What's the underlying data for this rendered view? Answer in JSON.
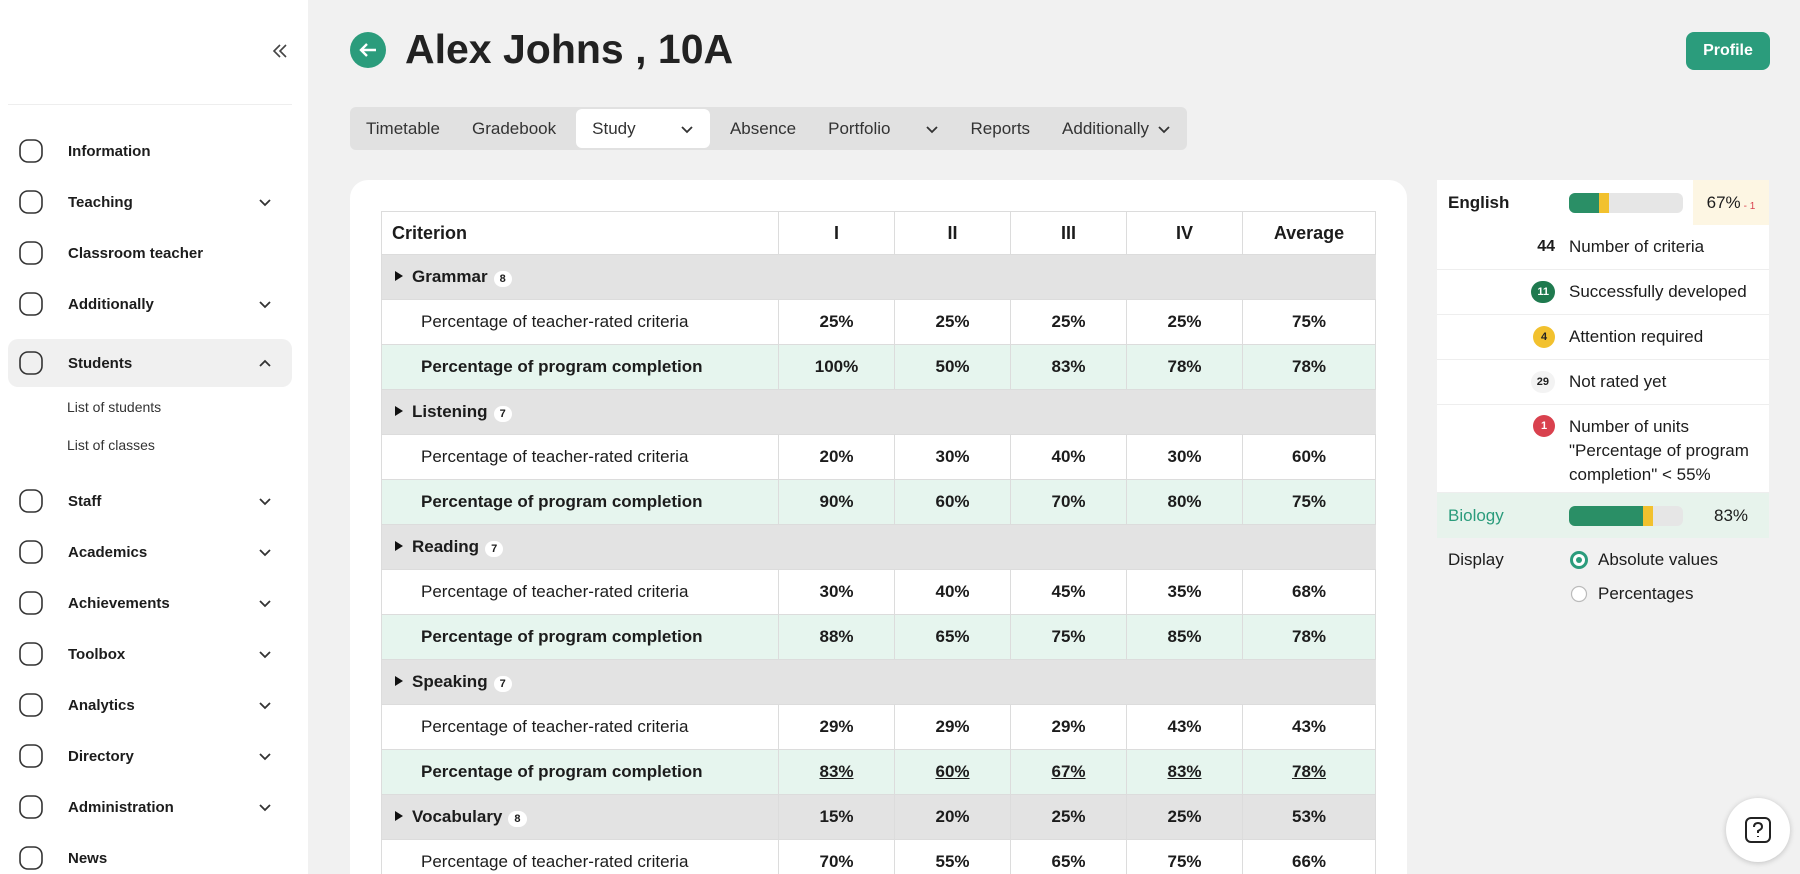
{
  "sidebar": {
    "items": [
      {
        "label": "Information",
        "expandable": false
      },
      {
        "label": "Teaching",
        "expandable": true
      },
      {
        "label": "Classroom teacher",
        "expandable": false
      },
      {
        "label": "Additionally",
        "expandable": true
      },
      {
        "label": "Students",
        "expandable": true,
        "expanded": true,
        "children": [
          "List of students",
          "List of classes"
        ]
      },
      {
        "label": "Staff",
        "expandable": true
      },
      {
        "label": "Academics",
        "expandable": true
      },
      {
        "label": "Achievements",
        "expandable": true
      },
      {
        "label": "Toolbox",
        "expandable": true
      },
      {
        "label": "Analytics",
        "expandable": true
      },
      {
        "label": "Directory",
        "expandable": true
      },
      {
        "label": "Administration",
        "expandable": true
      },
      {
        "label": "News",
        "expandable": false
      }
    ]
  },
  "header": {
    "title": "Alex Johns , 10A",
    "button": "Profile"
  },
  "tabs": {
    "items": [
      {
        "label": "Timetable",
        "dropdown": false
      },
      {
        "label": "Gradebook",
        "dropdown": false
      },
      {
        "label": "Study",
        "dropdown": true,
        "selected": true
      },
      {
        "label": "Absence",
        "dropdown": false
      },
      {
        "label": "Portfolio",
        "dropdown": true
      },
      {
        "label": "Reports",
        "dropdown": false
      },
      {
        "label": "Additionally",
        "dropdown": true
      }
    ]
  },
  "table": {
    "columns": [
      "Criterion",
      "I",
      "II",
      "III",
      "IV",
      "Average"
    ],
    "groups": [
      {
        "name": "Grammar",
        "count": 8,
        "rows": [
          {
            "label": "Percentage of teacher-rated criteria",
            "kind": "teacher",
            "cells": [
              "25%",
              "25%",
              "25%",
              "25%",
              "75%"
            ]
          },
          {
            "label": "Percentage of program completion",
            "kind": "program",
            "cells": [
              "100%",
              "50%",
              "83%",
              "78%",
              "78%"
            ]
          }
        ]
      },
      {
        "name": "Listening",
        "count": 7,
        "rows": [
          {
            "label": "Percentage of teacher-rated criteria",
            "kind": "teacher",
            "cells": [
              "20%",
              "30%",
              "40%",
              "30%",
              "60%"
            ]
          },
          {
            "label": "Percentage of program completion",
            "kind": "program",
            "cells": [
              "90%",
              "60%",
              "70%",
              "80%",
              "75%"
            ]
          }
        ]
      },
      {
        "name": "Reading",
        "count": 7,
        "rows": [
          {
            "label": "Percentage of teacher-rated criteria",
            "kind": "teacher",
            "cells": [
              "30%",
              "40%",
              "45%",
              "35%",
              "68%"
            ]
          },
          {
            "label": "Percentage of program completion",
            "kind": "program",
            "cells": [
              "88%",
              "65%",
              "75%",
              "85%",
              "78%"
            ]
          }
        ]
      },
      {
        "name": "Speaking",
        "count": 7,
        "rows": [
          {
            "label": "Percentage of teacher-rated criteria",
            "kind": "teacher",
            "cells": [
              "29%",
              "29%",
              "29%",
              "43%",
              "43%"
            ]
          },
          {
            "label": "Percentage of program completion",
            "kind": "program",
            "underline": true,
            "cells": [
              "83%",
              "60%",
              "67%",
              "83%",
              "78%"
            ]
          }
        ]
      },
      {
        "name": "Vocabulary",
        "count": 8,
        "values": [
          "15%",
          "20%",
          "25%",
          "25%",
          "53%"
        ],
        "rows": [
          {
            "label": "Percentage of teacher-rated criteria",
            "kind": "teacher",
            "cells": [
              "70%",
              "55%",
              "65%",
              "75%",
              "66%"
            ]
          }
        ]
      }
    ]
  },
  "summary": {
    "english": {
      "name": "English",
      "value": "67%",
      "delta": "- 1"
    },
    "stats": [
      {
        "count": 44,
        "label": "Number of criteria",
        "color": "none"
      },
      {
        "count": 11,
        "label": "Successfully developed",
        "color": "#1f7a4f"
      },
      {
        "count": 4,
        "label": "Attention required",
        "color": "#f2c12e"
      },
      {
        "count": 29,
        "label": "Not rated yet",
        "color": "#f3f3f3"
      },
      {
        "count": 1,
        "label": "Number of units \"Percentage of program completion\" < 55%",
        "color": "#d9414e"
      }
    ],
    "biology": {
      "name": "Biology",
      "value": "83%"
    },
    "display": {
      "label": "Display",
      "options": [
        "Absolute values",
        "Percentages"
      ],
      "selected": 0
    }
  }
}
